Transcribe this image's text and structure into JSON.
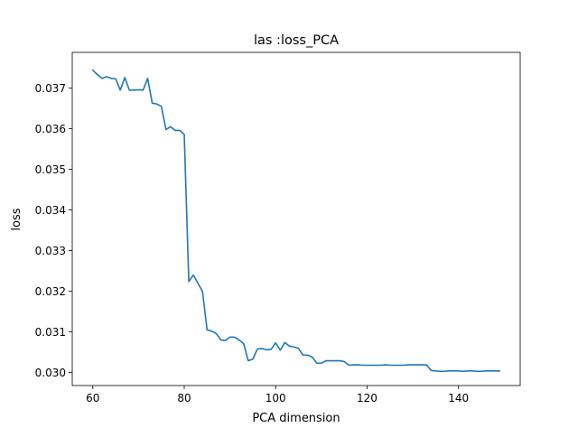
{
  "chart_data": {
    "type": "line",
    "title": "las :loss_PCA",
    "xlabel": "PCA dimension",
    "ylabel": "loss",
    "xlim": [
      55.5,
      153.5
    ],
    "ylim": [
      0.02968,
      0.03788
    ],
    "xticks": [
      60,
      80,
      100,
      120,
      140
    ],
    "xtick_labels": [
      "60",
      "80",
      "100",
      "120",
      "140"
    ],
    "yticks": [
      0.03,
      0.031,
      0.032,
      0.033,
      0.034,
      0.035,
      0.036,
      0.037
    ],
    "ytick_labels": [
      "0.030",
      "0.031",
      "0.032",
      "0.033",
      "0.034",
      "0.035",
      "0.036",
      "0.037"
    ],
    "grid": false,
    "series": [
      {
        "color": "#1f77b4",
        "x": [
          60,
          61,
          62,
          63,
          64,
          65,
          66,
          67,
          68,
          69,
          70,
          71,
          72,
          73,
          74,
          75,
          76,
          77,
          78,
          79,
          80,
          81,
          82,
          83,
          84,
          85,
          86,
          87,
          88,
          89,
          90,
          91,
          92,
          93,
          94,
          95,
          96,
          97,
          98,
          99,
          100,
          101,
          102,
          103,
          104,
          105,
          106,
          107,
          108,
          109,
          110,
          111,
          112,
          113,
          114,
          115,
          116,
          117,
          118,
          119,
          120,
          121,
          122,
          123,
          124,
          125,
          126,
          127,
          128,
          129,
          130,
          131,
          132,
          133,
          134,
          135,
          136,
          137,
          138,
          139,
          140,
          141,
          142,
          143,
          144,
          145,
          146,
          147,
          148,
          149
        ],
        "y": [
          0.03744,
          0.03733,
          0.03724,
          0.03728,
          0.03724,
          0.03723,
          0.03695,
          0.03726,
          0.03695,
          0.03695,
          0.03696,
          0.03695,
          0.03724,
          0.03663,
          0.03661,
          0.03655,
          0.03598,
          0.03605,
          0.03596,
          0.03596,
          0.03586,
          0.03224,
          0.0324,
          0.0322,
          0.03199,
          0.03105,
          0.03102,
          0.03096,
          0.0308,
          0.03079,
          0.03087,
          0.03087,
          0.0308,
          0.03071,
          0.03029,
          0.03033,
          0.03058,
          0.03059,
          0.03056,
          0.03057,
          0.03073,
          0.03055,
          0.03074,
          0.03065,
          0.03063,
          0.03059,
          0.03043,
          0.03043,
          0.03038,
          0.03023,
          0.03023,
          0.03029,
          0.03029,
          0.03029,
          0.03029,
          0.03027,
          0.03018,
          0.03019,
          0.03019,
          0.03018,
          0.03018,
          0.03018,
          0.03018,
          0.03018,
          0.03019,
          0.03018,
          0.03018,
          0.03018,
          0.03018,
          0.03019,
          0.03019,
          0.03019,
          0.03019,
          0.03019,
          0.03005,
          0.03004,
          0.03003,
          0.03003,
          0.03004,
          0.03004,
          0.03004,
          0.03003,
          0.03004,
          0.03004,
          0.03003,
          0.03003,
          0.03004,
          0.03004,
          0.03004,
          0.03004
        ]
      }
    ]
  }
}
